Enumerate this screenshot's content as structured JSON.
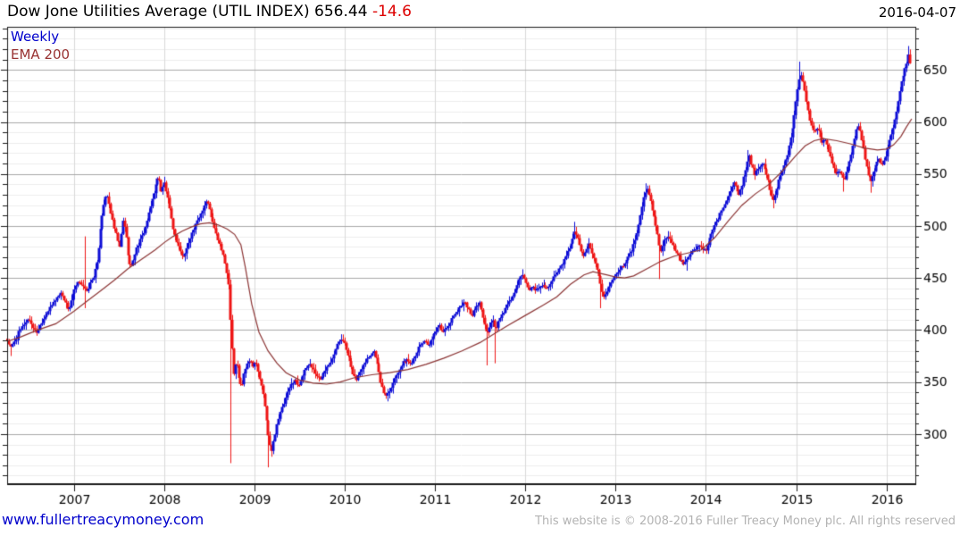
{
  "header": {
    "title": "Dow Jone Utilities Average (UTIL INDEX) 656.44 ",
    "change": "-14.6",
    "date": "2016-04-07"
  },
  "legend": {
    "timeframe": "Weekly",
    "ema": "EMA 200"
  },
  "footer": {
    "site": "www.fullertreacymoney.com",
    "copyright": "This website is © 2008-2016 Fuller Treacy Money plc. All rights reserved"
  },
  "chart_data": {
    "type": "candlestick",
    "title": "Dow Jone Utilities Average (UTIL INDEX)",
    "timeframe": "Weekly",
    "overlay": "EMA 200",
    "last_close": 656.44,
    "change": -14.6,
    "date": "2016-04-07",
    "x_axis": {
      "years": [
        2007,
        2008,
        2009,
        2010,
        2011,
        2012,
        2013,
        2014,
        2015,
        2016
      ],
      "t_start": 2006.26,
      "t_end": 2016.272
    },
    "y_axis": {
      "major_ticks": [
        650,
        600,
        550,
        500,
        450,
        400,
        350,
        300
      ],
      "minor_step": 10,
      "top_value": 690,
      "bottom_value": 260
    },
    "colors": {
      "up": "#0d0dd6",
      "down": "#ee1414",
      "ema": "#8b3434",
      "grid_major": "#a8a8a8",
      "grid_minor": "#ededed",
      "grid_year": "#d9d9d9",
      "border": "#1a1a1a",
      "label": "#000000",
      "change_red": "#dd0000",
      "link_blue": "#0000cc",
      "legend_ema": "#993333",
      "copyright_gray": "#b3b3b3"
    },
    "anchors": [
      [
        2006.26,
        390
      ],
      [
        2006.3,
        383
      ],
      [
        2006.34,
        389
      ],
      [
        2006.38,
        396
      ],
      [
        2006.42,
        401
      ],
      [
        2006.46,
        407
      ],
      [
        2006.5,
        411
      ],
      [
        2006.54,
        404
      ],
      [
        2006.58,
        397
      ],
      [
        2006.62,
        404
      ],
      [
        2006.66,
        411
      ],
      [
        2006.7,
        416
      ],
      [
        2006.74,
        421
      ],
      [
        2006.78,
        427
      ],
      [
        2006.82,
        432
      ],
      [
        2006.86,
        436
      ],
      [
        2006.9,
        428
      ],
      [
        2006.94,
        419
      ],
      [
        2006.98,
        432
      ],
      [
        2007.02,
        441
      ],
      [
        2007.06,
        447
      ],
      [
        2007.1,
        443
      ],
      [
        2007.14,
        436
      ],
      [
        2007.18,
        445
      ],
      [
        2007.22,
        452
      ],
      [
        2007.26,
        465
      ],
      [
        2007.3,
        503
      ],
      [
        2007.34,
        525
      ],
      [
        2007.37,
        529
      ],
      [
        2007.4,
        517
      ],
      [
        2007.44,
        500
      ],
      [
        2007.48,
        488
      ],
      [
        2007.51,
        478
      ],
      [
        2007.54,
        506
      ],
      [
        2007.57,
        498
      ],
      [
        2007.6,
        474
      ],
      [
        2007.63,
        458
      ],
      [
        2007.66,
        468
      ],
      [
        2007.69,
        477
      ],
      [
        2007.72,
        483
      ],
      [
        2007.75,
        489
      ],
      [
        2007.79,
        498
      ],
      [
        2007.83,
        511
      ],
      [
        2007.87,
        526
      ],
      [
        2007.91,
        540
      ],
      [
        2007.94,
        549
      ],
      [
        2007.97,
        531
      ],
      [
        2008.0,
        543
      ],
      [
        2008.04,
        527
      ],
      [
        2008.08,
        506
      ],
      [
        2008.12,
        490
      ],
      [
        2008.16,
        480
      ],
      [
        2008.2,
        470
      ],
      [
        2008.24,
        474
      ],
      [
        2008.28,
        487
      ],
      [
        2008.32,
        495
      ],
      [
        2008.36,
        503
      ],
      [
        2008.4,
        511
      ],
      [
        2008.44,
        519
      ],
      [
        2008.47,
        525
      ],
      [
        2008.51,
        513
      ],
      [
        2008.55,
        500
      ],
      [
        2008.59,
        489
      ],
      [
        2008.63,
        479
      ],
      [
        2008.67,
        466
      ],
      [
        2008.71,
        449
      ],
      [
        2008.74,
        398
      ],
      [
        2008.77,
        358
      ],
      [
        2008.8,
        372
      ],
      [
        2008.83,
        352
      ],
      [
        2008.86,
        345
      ],
      [
        2008.89,
        360
      ],
      [
        2008.92,
        368
      ],
      [
        2008.95,
        372
      ],
      [
        2008.98,
        366
      ],
      [
        2009.01,
        370
      ],
      [
        2009.05,
        356
      ],
      [
        2009.09,
        341
      ],
      [
        2009.13,
        318
      ],
      [
        2009.16,
        293
      ],
      [
        2009.19,
        283
      ],
      [
        2009.22,
        296
      ],
      [
        2009.25,
        310
      ],
      [
        2009.29,
        321
      ],
      [
        2009.33,
        330
      ],
      [
        2009.37,
        341
      ],
      [
        2009.41,
        349
      ],
      [
        2009.45,
        353
      ],
      [
        2009.49,
        346
      ],
      [
        2009.53,
        355
      ],
      [
        2009.57,
        363
      ],
      [
        2009.61,
        368
      ],
      [
        2009.65,
        362
      ],
      [
        2009.69,
        356
      ],
      [
        2009.73,
        352
      ],
      [
        2009.77,
        360
      ],
      [
        2009.81,
        366
      ],
      [
        2009.85,
        371
      ],
      [
        2009.89,
        379
      ],
      [
        2009.93,
        388
      ],
      [
        2009.97,
        393
      ],
      [
        2010.01,
        383
      ],
      [
        2010.05,
        370
      ],
      [
        2010.09,
        359
      ],
      [
        2010.13,
        352
      ],
      [
        2010.17,
        360
      ],
      [
        2010.21,
        368
      ],
      [
        2010.25,
        373
      ],
      [
        2010.29,
        377
      ],
      [
        2010.33,
        380
      ],
      [
        2010.37,
        363
      ],
      [
        2010.41,
        346
      ],
      [
        2010.45,
        337
      ],
      [
        2010.49,
        341
      ],
      [
        2010.53,
        349
      ],
      [
        2010.57,
        357
      ],
      [
        2010.61,
        363
      ],
      [
        2010.65,
        369
      ],
      [
        2010.69,
        372
      ],
      [
        2010.73,
        367
      ],
      [
        2010.77,
        374
      ],
      [
        2010.81,
        381
      ],
      [
        2010.85,
        387
      ],
      [
        2010.89,
        390
      ],
      [
        2010.93,
        385
      ],
      [
        2010.97,
        392
      ],
      [
        2011.01,
        398
      ],
      [
        2011.05,
        404
      ],
      [
        2011.09,
        398
      ],
      [
        2011.13,
        403
      ],
      [
        2011.17,
        408
      ],
      [
        2011.21,
        414
      ],
      [
        2011.25,
        419
      ],
      [
        2011.29,
        424
      ],
      [
        2011.33,
        428
      ],
      [
        2011.37,
        420
      ],
      [
        2011.41,
        414
      ],
      [
        2011.45,
        421
      ],
      [
        2011.49,
        428
      ],
      [
        2011.52,
        415
      ],
      [
        2011.55,
        405
      ],
      [
        2011.58,
        396
      ],
      [
        2011.61,
        404
      ],
      [
        2011.64,
        410
      ],
      [
        2011.67,
        400
      ],
      [
        2011.7,
        407
      ],
      [
        2011.74,
        414
      ],
      [
        2011.78,
        421
      ],
      [
        2011.82,
        427
      ],
      [
        2011.86,
        433
      ],
      [
        2011.9,
        440
      ],
      [
        2011.94,
        449
      ],
      [
        2011.97,
        454
      ],
      [
        2012.0,
        447
      ],
      [
        2012.04,
        438
      ],
      [
        2012.08,
        442
      ],
      [
        2012.12,
        438
      ],
      [
        2012.16,
        441
      ],
      [
        2012.2,
        444
      ],
      [
        2012.24,
        440
      ],
      [
        2012.28,
        446
      ],
      [
        2012.32,
        451
      ],
      [
        2012.36,
        456
      ],
      [
        2012.4,
        462
      ],
      [
        2012.44,
        469
      ],
      [
        2012.48,
        477
      ],
      [
        2012.52,
        487
      ],
      [
        2012.55,
        495
      ],
      [
        2012.58,
        489
      ],
      [
        2012.61,
        480
      ],
      [
        2012.64,
        472
      ],
      [
        2012.67,
        477
      ],
      [
        2012.7,
        483
      ],
      [
        2012.73,
        474
      ],
      [
        2012.76,
        467
      ],
      [
        2012.79,
        459
      ],
      [
        2012.82,
        449
      ],
      [
        2012.85,
        436
      ],
      [
        2012.88,
        430
      ],
      [
        2012.91,
        438
      ],
      [
        2012.94,
        444
      ],
      [
        2012.97,
        449
      ],
      [
        2013.01,
        454
      ],
      [
        2013.05,
        459
      ],
      [
        2013.09,
        463
      ],
      [
        2013.13,
        468
      ],
      [
        2013.17,
        475
      ],
      [
        2013.21,
        484
      ],
      [
        2013.25,
        499
      ],
      [
        2013.29,
        517
      ],
      [
        2013.32,
        531
      ],
      [
        2013.35,
        535
      ],
      [
        2013.38,
        527
      ],
      [
        2013.42,
        512
      ],
      [
        2013.46,
        494
      ],
      [
        2013.5,
        475
      ],
      [
        2013.53,
        484
      ],
      [
        2013.57,
        491
      ],
      [
        2013.6,
        487
      ],
      [
        2013.64,
        480
      ],
      [
        2013.68,
        473
      ],
      [
        2013.72,
        467
      ],
      [
        2013.76,
        463
      ],
      [
        2013.8,
        468
      ],
      [
        2013.84,
        474
      ],
      [
        2013.88,
        478
      ],
      [
        2013.92,
        481
      ],
      [
        2013.96,
        479
      ],
      [
        2014.0,
        477
      ],
      [
        2014.04,
        487
      ],
      [
        2014.08,
        496
      ],
      [
        2014.12,
        504
      ],
      [
        2014.16,
        512
      ],
      [
        2014.2,
        519
      ],
      [
        2014.24,
        527
      ],
      [
        2014.28,
        537
      ],
      [
        2014.31,
        542
      ],
      [
        2014.34,
        536
      ],
      [
        2014.37,
        530
      ],
      [
        2014.4,
        537
      ],
      [
        2014.43,
        549
      ],
      [
        2014.46,
        560
      ],
      [
        2014.48,
        567
      ],
      [
        2014.51,
        557
      ],
      [
        2014.54,
        550
      ],
      [
        2014.57,
        553
      ],
      [
        2014.6,
        557
      ],
      [
        2014.63,
        561
      ],
      [
        2014.66,
        553
      ],
      [
        2014.69,
        544
      ],
      [
        2014.72,
        532
      ],
      [
        2014.75,
        524
      ],
      [
        2014.78,
        534
      ],
      [
        2014.81,
        545
      ],
      [
        2014.84,
        551
      ],
      [
        2014.87,
        558
      ],
      [
        2014.9,
        568
      ],
      [
        2014.93,
        580
      ],
      [
        2014.96,
        595
      ],
      [
        2014.99,
        613
      ],
      [
        2015.02,
        633
      ],
      [
        2015.05,
        648
      ],
      [
        2015.08,
        638
      ],
      [
        2015.11,
        622
      ],
      [
        2015.14,
        606
      ],
      [
        2015.17,
        596
      ],
      [
        2015.2,
        589
      ],
      [
        2015.23,
        594
      ],
      [
        2015.26,
        589
      ],
      [
        2015.29,
        579
      ],
      [
        2015.32,
        585
      ],
      [
        2015.35,
        576
      ],
      [
        2015.38,
        568
      ],
      [
        2015.41,
        558
      ],
      [
        2015.44,
        550
      ],
      [
        2015.47,
        554
      ],
      [
        2015.5,
        549
      ],
      [
        2015.53,
        545
      ],
      [
        2015.56,
        552
      ],
      [
        2015.59,
        561
      ],
      [
        2015.62,
        572
      ],
      [
        2015.65,
        585
      ],
      [
        2015.68,
        597
      ],
      [
        2015.71,
        590
      ],
      [
        2015.74,
        577
      ],
      [
        2015.77,
        563
      ],
      [
        2015.8,
        549
      ],
      [
        2015.83,
        543
      ],
      [
        2015.86,
        553
      ],
      [
        2015.89,
        561
      ],
      [
        2015.92,
        566
      ],
      [
        2015.95,
        559
      ],
      [
        2015.98,
        564
      ],
      [
        2016.01,
        572
      ],
      [
        2016.04,
        584
      ],
      [
        2016.07,
        594
      ],
      [
        2016.1,
        606
      ],
      [
        2016.13,
        621
      ],
      [
        2016.16,
        636
      ],
      [
        2016.19,
        646
      ],
      [
        2016.22,
        655
      ],
      [
        2016.25,
        667
      ],
      [
        2016.27,
        656.4
      ]
    ],
    "wick_events": [
      {
        "t": 2006.3,
        "low": 375
      },
      {
        "t": 2007.14,
        "high": 490,
        "low": 421
      },
      {
        "t": 2008.74,
        "low": 272
      },
      {
        "t": 2009.16,
        "low": 268
      },
      {
        "t": 2011.58,
        "low": 366
      },
      {
        "t": 2011.67,
        "low": 368
      },
      {
        "t": 2012.55,
        "high": 504
      },
      {
        "t": 2012.85,
        "low": 421
      },
      {
        "t": 2013.35,
        "high": 541
      },
      {
        "t": 2013.5,
        "low": 449
      },
      {
        "t": 2013.8,
        "low": 457
      },
      {
        "t": 2014.48,
        "high": 573
      },
      {
        "t": 2014.75,
        "low": 517
      },
      {
        "t": 2015.05,
        "high": 658
      },
      {
        "t": 2015.53,
        "low": 533
      },
      {
        "t": 2015.83,
        "low": 532
      },
      {
        "t": 2016.25,
        "high": 673
      }
    ],
    "ema_points": [
      [
        2006.26,
        389
      ],
      [
        2006.4,
        393
      ],
      [
        2006.6,
        400
      ],
      [
        2006.8,
        406
      ],
      [
        2007.0,
        418
      ],
      [
        2007.15,
        428
      ],
      [
        2007.3,
        438
      ],
      [
        2007.45,
        448
      ],
      [
        2007.6,
        459
      ],
      [
        2007.75,
        468
      ],
      [
        2007.9,
        477
      ],
      [
        2008.0,
        484
      ],
      [
        2008.1,
        490
      ],
      [
        2008.2,
        495
      ],
      [
        2008.3,
        499
      ],
      [
        2008.4,
        502
      ],
      [
        2008.5,
        503
      ],
      [
        2008.6,
        501
      ],
      [
        2008.7,
        497
      ],
      [
        2008.78,
        492
      ],
      [
        2008.85,
        482
      ],
      [
        2008.9,
        460
      ],
      [
        2008.97,
        425
      ],
      [
        2009.05,
        398
      ],
      [
        2009.15,
        380
      ],
      [
        2009.25,
        368
      ],
      [
        2009.35,
        359
      ],
      [
        2009.5,
        352
      ],
      [
        2009.65,
        349
      ],
      [
        2009.8,
        348
      ],
      [
        2009.95,
        350
      ],
      [
        2010.1,
        354
      ],
      [
        2010.3,
        357
      ],
      [
        2010.5,
        359
      ],
      [
        2010.7,
        362
      ],
      [
        2010.9,
        367
      ],
      [
        2011.1,
        373
      ],
      [
        2011.3,
        380
      ],
      [
        2011.5,
        388
      ],
      [
        2011.65,
        396
      ],
      [
        2011.8,
        404
      ],
      [
        2012.0,
        414
      ],
      [
        2012.2,
        424
      ],
      [
        2012.35,
        432
      ],
      [
        2012.5,
        444
      ],
      [
        2012.65,
        453
      ],
      [
        2012.75,
        456
      ],
      [
        2012.9,
        453
      ],
      [
        2013.0,
        451
      ],
      [
        2013.1,
        450
      ],
      [
        2013.2,
        452
      ],
      [
        2013.35,
        459
      ],
      [
        2013.5,
        466
      ],
      [
        2013.65,
        471
      ],
      [
        2013.8,
        474
      ],
      [
        2013.95,
        477
      ],
      [
        2014.1,
        489
      ],
      [
        2014.25,
        505
      ],
      [
        2014.4,
        520
      ],
      [
        2014.55,
        531
      ],
      [
        2014.7,
        540
      ],
      [
        2014.85,
        553
      ],
      [
        2015.0,
        568
      ],
      [
        2015.1,
        577
      ],
      [
        2015.2,
        582
      ],
      [
        2015.3,
        584
      ],
      [
        2015.45,
        582
      ],
      [
        2015.6,
        579
      ],
      [
        2015.75,
        575
      ],
      [
        2015.9,
        573
      ],
      [
        2016.0,
        574
      ],
      [
        2016.08,
        578
      ],
      [
        2016.16,
        586
      ],
      [
        2016.22,
        595
      ],
      [
        2016.28,
        603
      ]
    ]
  }
}
